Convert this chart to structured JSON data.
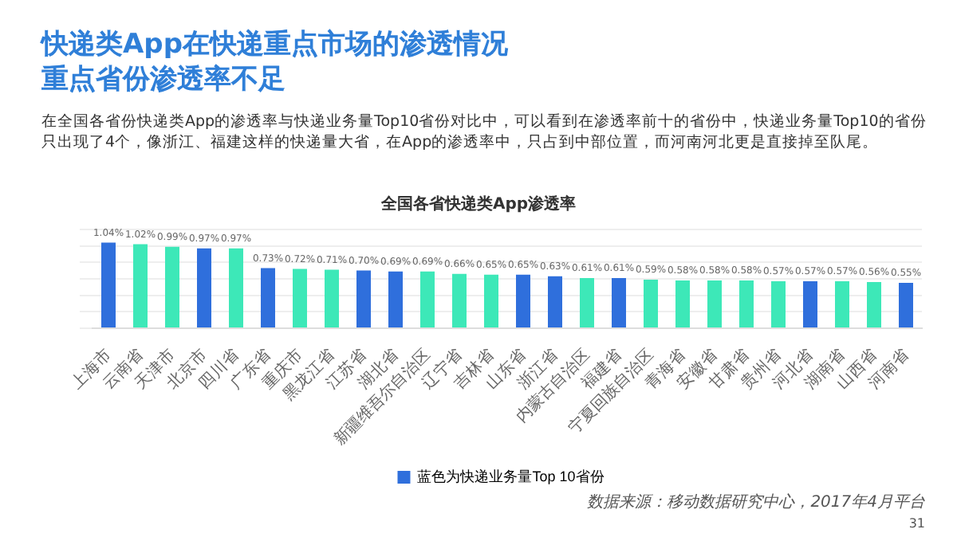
{
  "chart_data": {
    "type": "bar",
    "title": "快递类App在快递重点市场的渗透情况",
    "subtitle": "重点省份渗透率不足",
    "annotations": [
      "在全国各省份快递类App的渗透率与快递业务量Top10省份对比中，可以看到在渗透率前十的省份中，快递业务量Top10的省份只出现了4个，像浙江、福建这样的快递量大省，在App的渗透率中，只占到中部位置，而河南河北更是直接掉至队尾。",
      "全国各省快递类App渗透率",
      "数据来源：移动数据研究中心，2017年4月平台",
      "31"
    ],
    "categories": [
      "上海市",
      "云南省",
      "天津市",
      "北京市",
      "四川省",
      "广东省",
      "重庆市",
      "黑龙江省",
      "江苏省",
      "湖北省",
      "新疆维吾尔自治区",
      "辽宁省",
      "吉林省",
      "山东省",
      "浙江省",
      "内蒙古自治区",
      "福建省",
      "宁夏回族自治区",
      "青海省",
      "安徽省",
      "甘肃省",
      "贵州省",
      "河北省",
      "湖南省",
      "山西省",
      "河南省"
    ],
    "series": [
      {
        "name": "蓝色为快递业务量Top 10省份",
        "color": "#2f6fdc",
        "values": [
          1.04,
          1.02,
          0.99,
          0.97,
          0.97,
          0.73,
          0.72,
          0.71,
          0.7,
          0.69,
          0.69,
          0.66,
          0.65,
          0.65,
          0.63,
          0.61,
          0.61,
          0.59,
          0.58,
          0.58,
          0.58,
          0.57,
          0.57,
          0.57,
          0.56,
          0.55
        ],
        "value_labels": [
          "1.04%",
          "1.02%",
          "0.99%",
          "0.97%",
          "0.97%",
          "0.73%",
          "0.72%",
          "0.71%",
          "0.70%",
          "0.69%",
          "0.69%",
          "0.66%",
          "0.65%",
          "0.65%",
          "0.63%",
          "0.61%",
          "0.61%",
          "0.59%",
          "0.58%",
          "0.58%",
          "0.58%",
          "0.57%",
          "0.57%",
          "0.57%",
          "0.56%",
          "0.55%"
        ],
        "colors": [
          "#2f6fdc",
          "#3de8b8",
          "#3de8b8",
          "#2f6fdc",
          "#3de8b8",
          "#2f6fdc",
          "#3de8b8",
          "#3de8b8",
          "#2f6fdc",
          "#2f6fdc",
          "#3de8b8",
          "#3de8b8",
          "#3de8b8",
          "#2f6fdc",
          "#2f6fdc",
          "#3de8b8",
          "#2f6fdc",
          "#3de8b8",
          "#3de8b8",
          "#3de8b8",
          "#3de8b8",
          "#3de8b8",
          "#2f6fdc",
          "#3de8b8",
          "#3de8b8",
          "#2f6fdc"
        ]
      }
    ],
    "ylim": [
      0,
      1.2
    ],
    "yticks": [
      {
        "value": 0,
        "label": null
      },
      {
        "value": 0.2,
        "label": null
      },
      {
        "value": 0.4,
        "label": null
      },
      {
        "value": 0.6,
        "label": null
      },
      {
        "value": 0.8,
        "label": null
      },
      {
        "value": 1,
        "label": null
      },
      {
        "value": 1.2,
        "label": null
      }
    ],
    "tick_labels": "x",
    "grid": "y",
    "legend": "bottom"
  }
}
